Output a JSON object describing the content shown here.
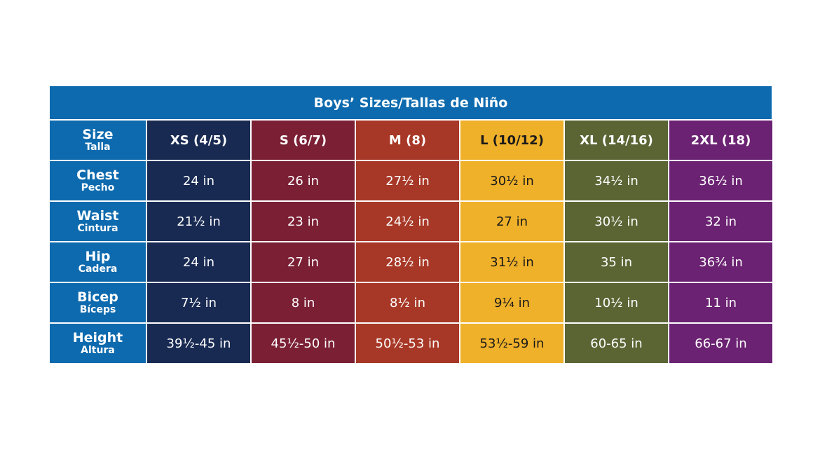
{
  "title": "Boys’ Sizes/Tallas de Niño",
  "corner": {
    "label": "Size",
    "sublabel": "Talla"
  },
  "sizes": [
    "XS (4/5)",
    "S (6/7)",
    "M (8)",
    "L (10/12)",
    "XL (14/16)",
    "2XL (18)"
  ],
  "colors": [
    "#182a52",
    "#7a1f34",
    "#a73726",
    "#efb02a",
    "#5b6534",
    "#6b2272"
  ],
  "header_color": "#0d6aae",
  "rows": [
    {
      "label": "Chest",
      "sublabel": "Pecho",
      "values": [
        "24 in",
        "26 in",
        "27½ in",
        "30½ in",
        "34½ in",
        "36½ in"
      ]
    },
    {
      "label": "Waist",
      "sublabel": "Cintura",
      "values": [
        "21½ in",
        "23 in",
        "24½ in",
        "27 in",
        "30½ in",
        "32 in"
      ]
    },
    {
      "label": "Hip",
      "sublabel": "Cadera",
      "values": [
        "24 in",
        "27 in",
        "28½ in",
        "31½ in",
        "35 in",
        "36¾ in"
      ]
    },
    {
      "label": "Bicep",
      "sublabel": "Bíceps",
      "values": [
        "7½ in",
        "8 in",
        "8½ in",
        "9¼ in",
        "10½ in",
        "11 in"
      ]
    },
    {
      "label": "Height",
      "sublabel": "Altura",
      "values": [
        "39½-45 in",
        "45½-50 in",
        "50½-53 in",
        "53½-59 in",
        "60-65 in",
        "66-67 in"
      ]
    }
  ]
}
